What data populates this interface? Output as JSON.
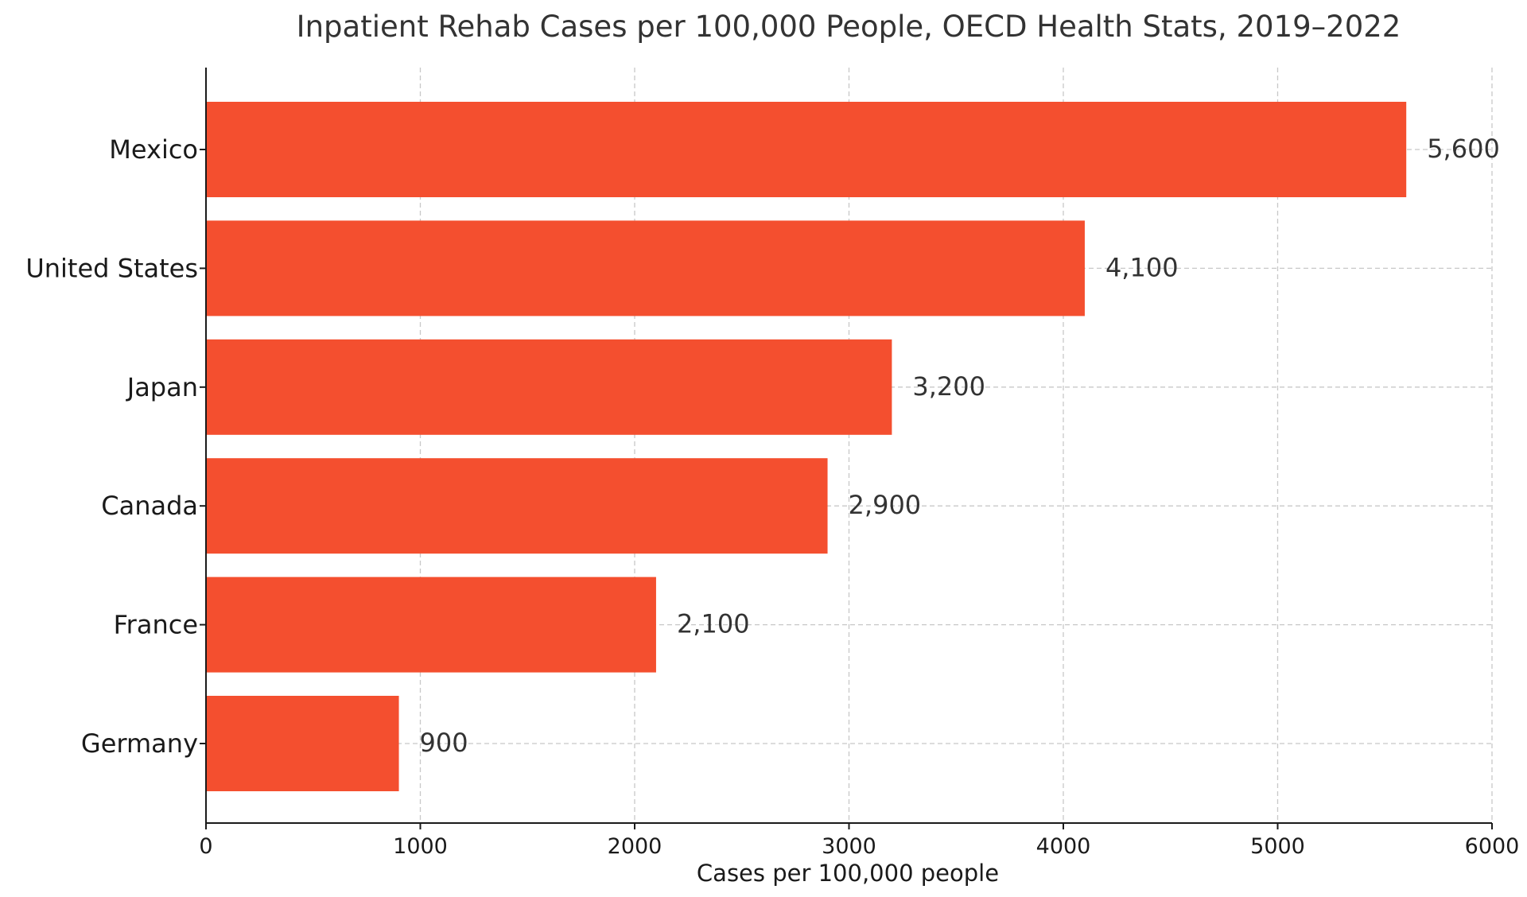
{
  "chart_data": {
    "type": "bar",
    "orientation": "horizontal",
    "title": "Inpatient Rehab Cases per 100,000 People, OECD Health Stats, 2019–2022",
    "xlabel": "Cases per 100,000 people",
    "ylabel": "",
    "categories": [
      "Mexico",
      "United States",
      "Japan",
      "Canada",
      "France",
      "Germany"
    ],
    "values": [
      5600,
      4100,
      3200,
      2900,
      2100,
      900
    ],
    "value_labels": [
      "5,600",
      "4,100",
      "3,200",
      "2,900",
      "2,100",
      "900"
    ],
    "xlim": [
      0,
      6000
    ],
    "xticks": [
      0,
      1000,
      2000,
      3000,
      4000,
      5000,
      6000
    ],
    "xtick_labels": [
      "0",
      "1000",
      "2000",
      "3000",
      "4000",
      "5000",
      "6000"
    ],
    "bar_color": "#f44f2f",
    "grid": true,
    "legend": null
  }
}
